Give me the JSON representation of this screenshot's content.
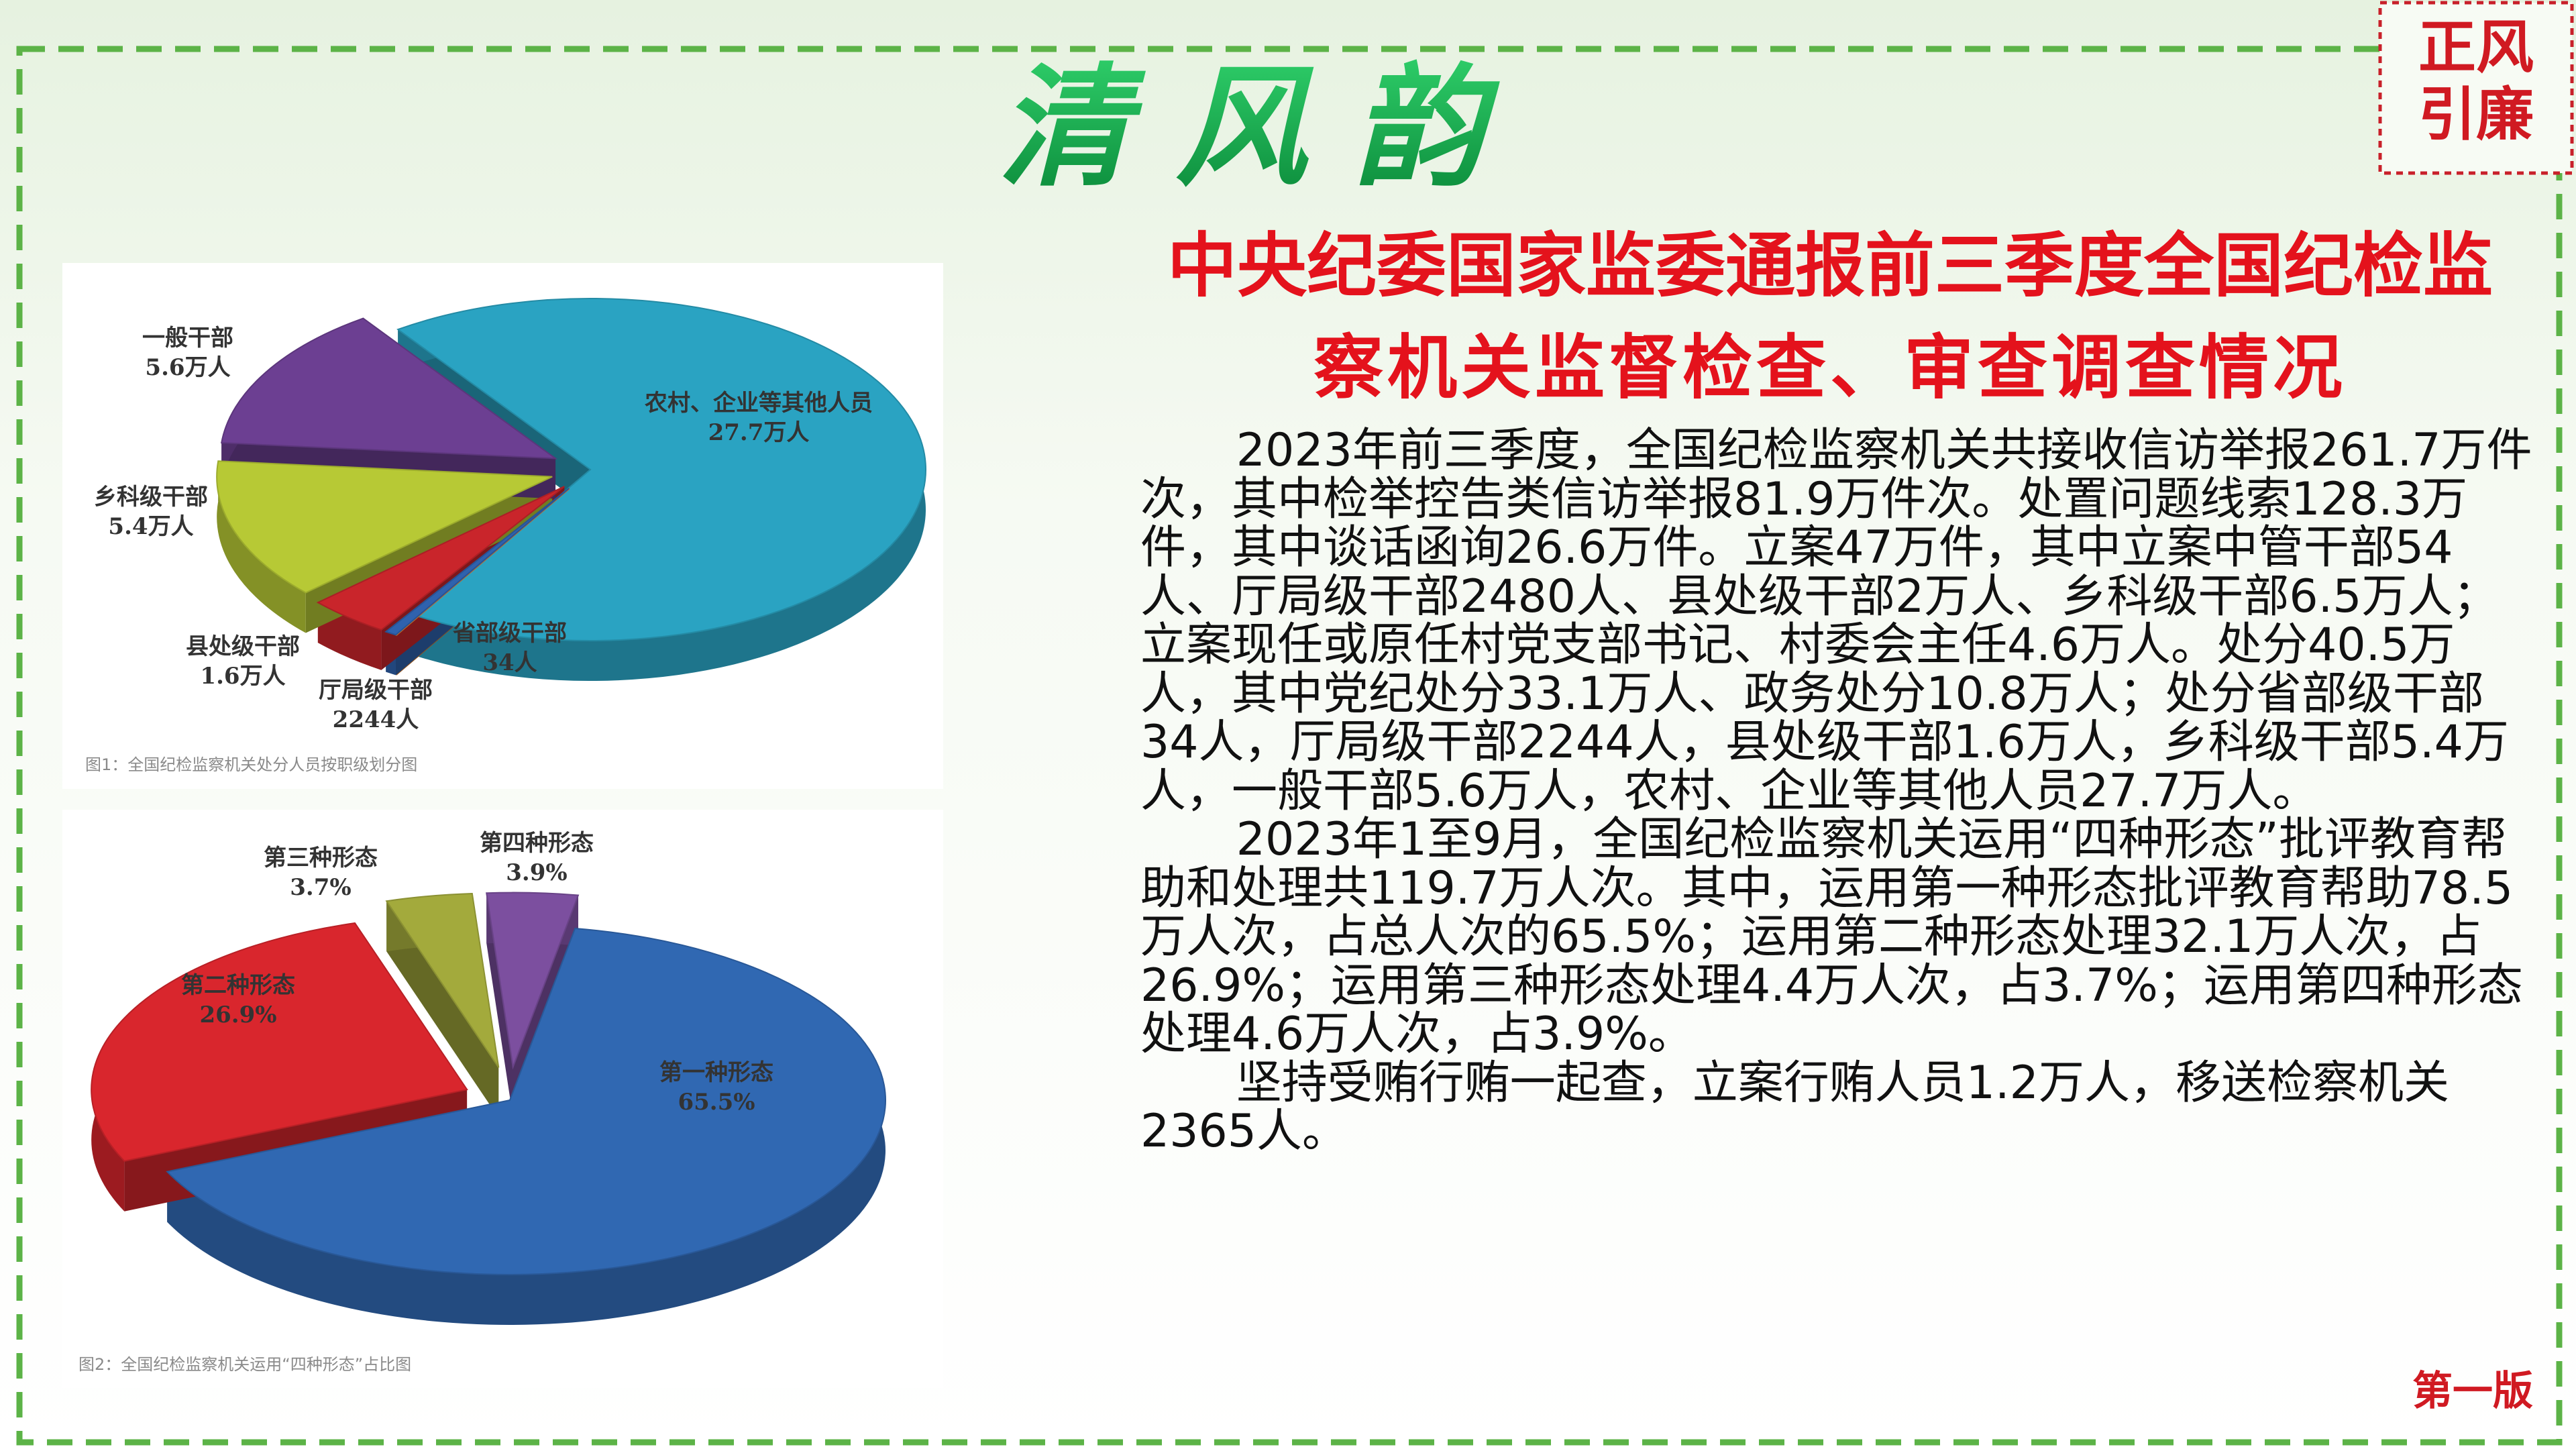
{
  "title": "清 风 韵",
  "stamp": [
    "正风",
    "引廉"
  ],
  "headline": [
    "中央纪委国家监委通报前三季度全国纪检监",
    "察机关监督检查、审查调查情况"
  ],
  "body": [
    "2023年前三季度，全国纪检监察机关共接收信访举报261.7万件次，其中检举控告类信访举报81.9万件次。处置问题线索128.3万件，其中谈话函询26.6万件。立案47万件，其中立案中管干部54人、厅局级干部2480人、县处级干部2万人、乡科级干部6.5万人；立案现任或原任村党支部书记、村委会主任4.6万人。处分40.5万人，其中党纪处分33.1万人、政务处分10.8万人；处分省部级干部34人，厅局级干部2244人，县处级干部1.6万人，乡科级干部5.4万人，一般干部5.6万人，农村、企业等其他人员27.7万人。",
    "2023年1至9月，全国纪检监察机关运用“四种形态”批评教育帮助和处理共119.7万人次。其中，运用第一种形态批评教育帮助78.5万人次，占总人次的65.5%；运用第二种形态处理32.1万人次，占26.9%；运用第三种形态处理4.4万人次，占3.7%；运用第四种形态处理4.6万人次，占3.9%。",
    "坚持受贿行贿一起查，立案行贿人员1.2万人，移送检察机关2365人。"
  ],
  "figures": [
    {
      "type": "pie",
      "caption": "图1：全国纪检监察机关处分人员按职级划分图",
      "slices": [
        {
          "name": "农村、企业等其他人员",
          "value": 27.7,
          "value_label": "27.7万人",
          "color": "#2aa3c2"
        },
        {
          "name": "省部级干部",
          "value": 0.0034,
          "value_label": "34人",
          "color": "#e57f2a"
        },
        {
          "name": "厅局级干部",
          "value": 0.2244,
          "value_label": "2244人",
          "color": "#2f62ae"
        },
        {
          "name": "县处级干部",
          "value": 1.6,
          "value_label": "1.6万人",
          "color": "#c9252b"
        },
        {
          "name": "乡科级干部",
          "value": 5.4,
          "value_label": "5.4万人",
          "color": "#b7c935"
        },
        {
          "name": "一般干部",
          "value": 5.6,
          "value_label": "5.6万人",
          "color": "#6c3f92"
        }
      ]
    },
    {
      "type": "pie",
      "caption": "图2：全国纪检监察机关运用“四种形态”占比图",
      "slices": [
        {
          "name": "第一种形态",
          "value": 65.5,
          "value_label": "65.5%",
          "color": "#3068b2"
        },
        {
          "name": "第二种形态",
          "value": 26.9,
          "value_label": "26.9%",
          "color": "#d9262d"
        },
        {
          "name": "第三种形态",
          "value": 3.7,
          "value_label": "3.7%",
          "color": "#a3aa3c"
        },
        {
          "name": "第四种形态",
          "value": 3.9,
          "value_label": "3.9%",
          "color": "#7c4f9f"
        }
      ]
    }
  ],
  "edition": "第一版"
}
